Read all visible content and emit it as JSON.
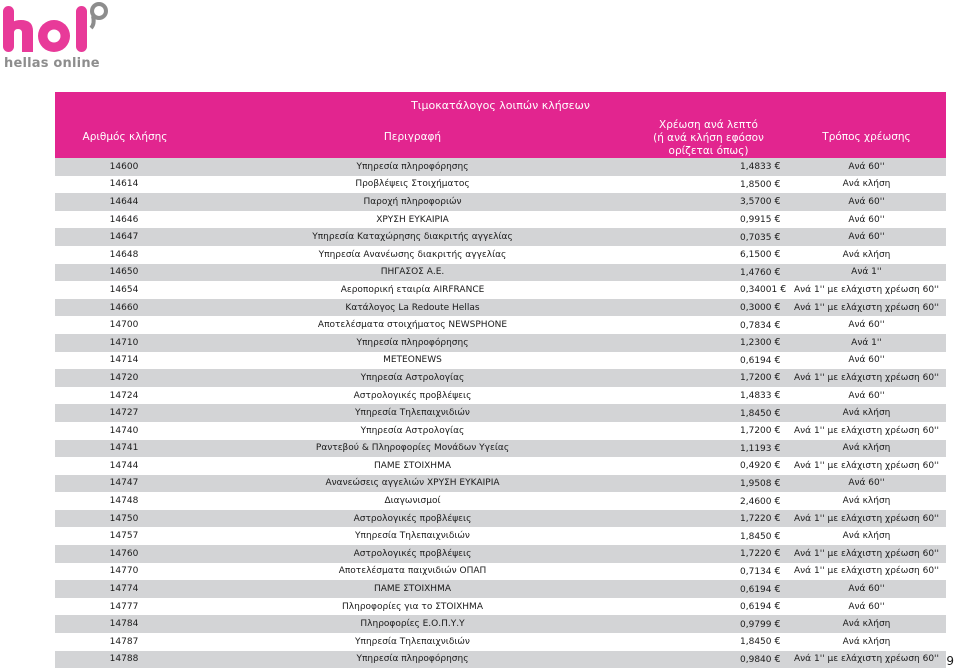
{
  "brand": {
    "logo_text": "hol",
    "tagline": "hellas online",
    "accent": "#e2258f",
    "logo_color": "#e83a99",
    "tagline_color": "#8d8d8d"
  },
  "table": {
    "title": "Τιμοκατάλογος λοιπών κλήσεων",
    "headers": {
      "number": "Αριθμός κλήσης",
      "description": "Περιγραφή",
      "price_line1": "Χρέωση ανά λεπτό",
      "price_line2": "(ή ανά κλήση εφόσον ορίζεται όπως)",
      "mode": "Τρόπος χρέωσης"
    },
    "currency_symbol": "€",
    "rows": [
      {
        "number": "14600",
        "description": "Υπηρεσία πληροφόρησης",
        "price": "1,4833",
        "mode": "Ανά 60''"
      },
      {
        "number": "14614",
        "description": "Προβλέψεις Στοιχήματος",
        "price": "1,8500",
        "mode": "Ανά κλήση"
      },
      {
        "number": "14644",
        "description": "Παροχή πληροφοριών",
        "price": "3,5700",
        "mode": "Ανά 60''"
      },
      {
        "number": "14646",
        "description": "ΧΡΥΣΗ ΕΥΚΑΙΡΙΑ",
        "price": "0,9915",
        "mode": "Ανά 60''"
      },
      {
        "number": "14647",
        "description": "Υπηρεσία Καταχώρησης διακριτής αγγελίας",
        "price": "0,7035",
        "mode": "Ανά 60''"
      },
      {
        "number": "14648",
        "description": "Υπηρεσία Ανανέωσης διακριτής αγγελίας",
        "price": "6,1500",
        "mode": "Ανά κλήση"
      },
      {
        "number": "14650",
        "description": "ΠΗΓΑΣΟΣ Α.Ε.",
        "price": "1,4760",
        "mode": "Ανά 1''"
      },
      {
        "number": "14654",
        "description": "Αεροπορική εταιρία AIRFRANCE",
        "price": "0,34001",
        "mode": "Ανά 1'' με ελάχιστη χρέωση 60''"
      },
      {
        "number": "14660",
        "description": "Κατάλογος La Redoute Hellas",
        "price": "0,3000",
        "mode": "Ανά 1'' με ελάχιστη χρέωση 60''"
      },
      {
        "number": "14700",
        "description": "Αποτελέσματα στοιχήματος NEWSPHONE",
        "price": "0,7834",
        "mode": "Ανά 60''"
      },
      {
        "number": "14710",
        "description": "Υπηρεσία πληροφόρησης",
        "price": "1,2300",
        "mode": "Ανά 1''"
      },
      {
        "number": "14714",
        "description": "METEONEWS",
        "price": "0,6194",
        "mode": "Ανά 60''"
      },
      {
        "number": "14720",
        "description": "Υπηρεσία Αστρολογίας",
        "price": "1,7200",
        "mode": "Ανά 1'' με ελάχιστη χρέωση 60''"
      },
      {
        "number": "14724",
        "description": "Αστρολογικές προβλέψεις",
        "price": "1,4833",
        "mode": "Ανά 60''"
      },
      {
        "number": "14727",
        "description": "Υπηρεσία Τηλεπαιχνιδιών",
        "price": "1,8450",
        "mode": "Ανά κλήση"
      },
      {
        "number": "14740",
        "description": "Υπηρεσία Αστρολογίας",
        "price": "1,7200",
        "mode": "Ανά 1'' με ελάχιστη χρέωση 60''"
      },
      {
        "number": "14741",
        "description": "Ραντεβού & Πληροφορίες Μονάδων Υγείας",
        "price": "1,1193",
        "mode": "Ανά κλήση"
      },
      {
        "number": "14744",
        "description": "ΠΑΜΕ ΣΤΟΙΧΗΜΑ",
        "price": "0,4920",
        "mode": "Ανά 1'' με ελάχιστη χρέωση 60''"
      },
      {
        "number": "14747",
        "description": "Ανανεώσεις αγγελιών ΧΡΥΣΗ ΕΥΚΑΙΡΙΑ",
        "price": "1,9508",
        "mode": "Ανά 60''"
      },
      {
        "number": "14748",
        "description": "Διαγωνισμοί",
        "price": "2,4600",
        "mode": "Ανά κλήση"
      },
      {
        "number": "14750",
        "description": "Αστρολογικές προβλέψεις",
        "price": "1,7220",
        "mode": "Ανά 1'' με ελάχιστη χρέωση 60''"
      },
      {
        "number": "14757",
        "description": "Υπηρεσία Τηλεπαιχνιδιών",
        "price": "1,8450",
        "mode": "Ανά κλήση"
      },
      {
        "number": "14760",
        "description": "Αστρολογικές προβλέψεις",
        "price": "1,7220",
        "mode": "Ανά 1'' με ελάχιστη χρέωση 60''"
      },
      {
        "number": "14770",
        "description": "Αποτελέσματα παιχνιδιών ΟΠΑΠ",
        "price": "0,7134",
        "mode": "Ανά 1'' με ελάχιστη χρέωση 60''"
      },
      {
        "number": "14774",
        "description": "ΠΑΜΕ ΣΤΟΙΧΗΜΑ",
        "price": "0,6194",
        "mode": "Ανά 60''"
      },
      {
        "number": "14777",
        "description": "Πληροφορίες για το ΣΤΟΙΧΗΜΑ",
        "price": "0,6194",
        "mode": "Ανά 60''"
      },
      {
        "number": "14784",
        "description": "Πληροφορίες Ε.Ο.Π.Υ.Υ",
        "price": "0,9799",
        "mode": "Ανά κλήση"
      },
      {
        "number": "14787",
        "description": "Υπηρεσία Τηλεπαιχνιδιών",
        "price": "1,8450",
        "mode": "Ανά κλήση"
      },
      {
        "number": "14788",
        "description": "Υπηρεσία πληροφόρησης",
        "price": "0,9840",
        "mode": "Ανά 1'' με ελάχιστη χρέωση 60''"
      }
    ]
  },
  "page_number": "9"
}
